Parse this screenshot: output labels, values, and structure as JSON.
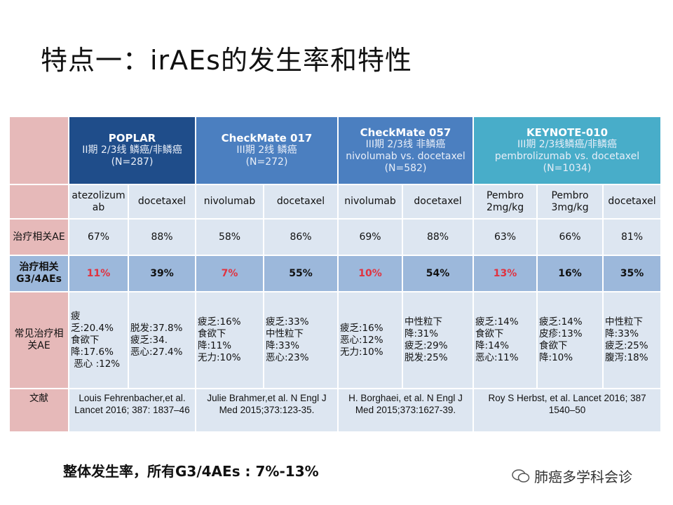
{
  "title": "特点一：irAEs的发生率和特性",
  "headers": [
    {
      "name": "POPLAR",
      "lines": [
        "II期  2/3线 鳞癌/非鳞癌",
        "(N=287)"
      ]
    },
    {
      "name": "CheckMate 017",
      "lines": [
        "III期 2线 鳞癌",
        "(N=272)"
      ]
    },
    {
      "name": "CheckMate 057",
      "lines": [
        "III期 2/3线 非鳞癌",
        "nivolumab vs. docetaxel",
        "(N=582)"
      ]
    },
    {
      "name": "KEYNOTE-010",
      "lines": [
        "III期 2/3线鳞癌/非鳞癌",
        "pembrolizumab vs. docetaxel",
        "(N=1034)"
      ]
    }
  ],
  "drugs": [
    "atezolizumab",
    "docetaxel",
    "nivolumab",
    "docetaxel",
    "nivolumab",
    "docetaxel",
    "Pembro 2mg/kg",
    "Pembro 3mg/kg",
    "docetaxel"
  ],
  "rows": {
    "ae": {
      "label": "治疗相关AE",
      "values": [
        "67%",
        "88%",
        "58%",
        "86%",
        "69%",
        "88%",
        "63%",
        "66%",
        "81%"
      ]
    },
    "g34": {
      "label": "治疗相关G3/4AEs",
      "values": [
        {
          "v": "11%",
          "hl": true
        },
        {
          "v": "39%"
        },
        {
          "v": "7%",
          "hl": true
        },
        {
          "v": "55%"
        },
        {
          "v": "10%",
          "hl": true
        },
        {
          "v": "54%"
        },
        {
          "v": "13%",
          "hl": true
        },
        {
          "v": "16%"
        },
        {
          "v": "35%"
        }
      ]
    },
    "common": {
      "label": "常见治疗相关AE",
      "values": [
        [
          "疲",
          "乏:20.4%",
          "食欲下",
          "降:17.6%",
          " 恶心 :12%"
        ],
        [
          "脱发:37.8%",
          "疲乏:34.",
          "恶心:27.4%"
        ],
        [
          "疲乏:16%",
          "食欲下",
          "降:11%",
          "无力:10%"
        ],
        [
          "疲乏:33%",
          "中性粒下",
          "降:33%",
          "恶心:23%"
        ],
        [
          "疲乏:16%",
          "恶心:12%",
          "无力:10%"
        ],
        [
          "中性粒下",
          "降:31%",
          "疲乏:29%",
          "脱发:25%"
        ],
        [
          "疲乏:14%",
          "食欲下",
          "降:14%",
          "恶心:11%"
        ],
        [
          "疲乏:14%",
          "皮疹:13%",
          "食欲下",
          "降:10%"
        ],
        [
          "中性粒下",
          "降:33%",
          "疲乏:25%",
          "腹泻:18%"
        ]
      ]
    },
    "ref": {
      "label": "文献",
      "values": [
        "Louis Fehrenbacher,et al. Lancet 2016; 387: 1837–46",
        "Julie Brahmer,et al. N Engl J Med 2015;373:123-35.",
        "H. Borghaei, et al. N Engl J Med 2015;373:1627-39.",
        "Roy S Herbst, et al. Lancet 2016; 387 1540–50"
      ]
    }
  },
  "footer": "整体发生率，所有G3/4AEs : 7%-13%",
  "watermark": "肺癌多学科会诊",
  "colors": {
    "highlight": "#e1323f",
    "label_bg": "#e6b9b9",
    "poplar": "#1f4d8a",
    "checkmate": "#4b7fc0",
    "keynote": "#48adc9",
    "cell": "#dde6f1",
    "g34_row": "#9cb8db"
  }
}
